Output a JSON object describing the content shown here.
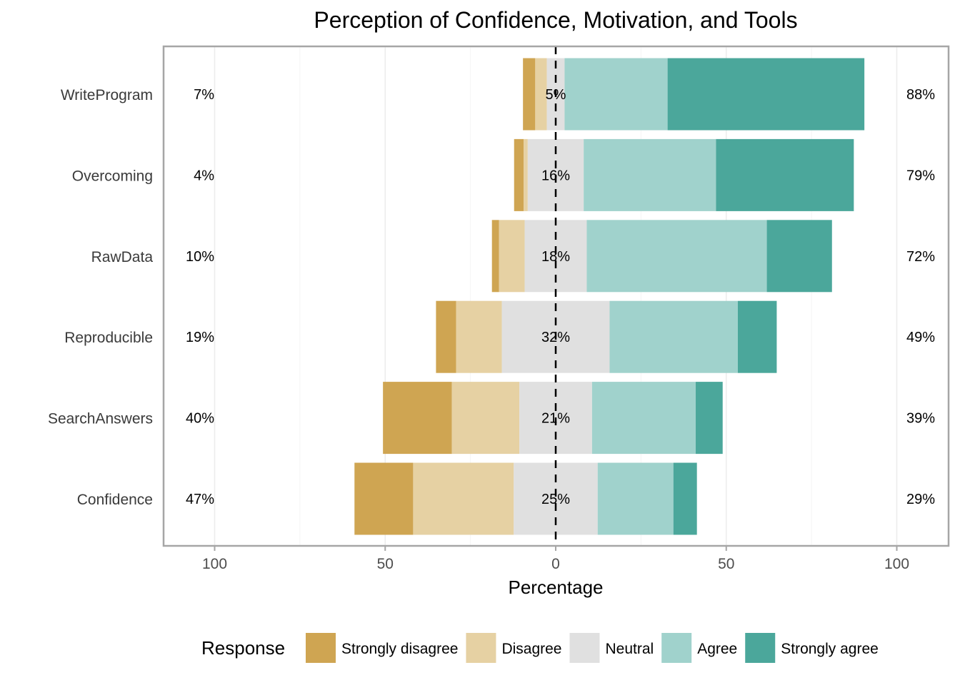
{
  "chart_data": {
    "type": "bar",
    "orientation": "horizontal",
    "stacked": "diverging",
    "title": "Perception of Confidence, Motivation, and Tools",
    "xlabel": "Percentage",
    "ylabel": "",
    "xlim": [
      -100,
      100
    ],
    "xticks": [
      -100,
      -50,
      0,
      50,
      100
    ],
    "xtick_labels": [
      "100",
      "50",
      "0",
      "50",
      "100"
    ],
    "grid": true,
    "legend": {
      "title": "Response",
      "position": "bottom",
      "entries": [
        "Strongly disagree",
        "Disagree",
        "Neutral",
        "Agree",
        "Strongly agree"
      ]
    },
    "categories": [
      "WriteProgram",
      "Overcoming",
      "RawData",
      "Reproducible",
      "SearchAnswers",
      "Confidence"
    ],
    "series": [
      {
        "name": "Strongly disagree",
        "color": "#CFA552",
        "values": [
          3.6,
          2.8,
          2.1,
          5.9,
          20.2,
          17.2
        ]
      },
      {
        "name": "Disagree",
        "color": "#E6D1A3",
        "values": [
          3.4,
          1.2,
          7.5,
          13.4,
          19.8,
          29.5
        ]
      },
      {
        "name": "Neutral",
        "color": "#E0E0E0",
        "values": [
          5.2,
          16.4,
          18.2,
          31.6,
          21.3,
          24.6
        ]
      },
      {
        "name": "Agree",
        "color": "#A0D2CC",
        "values": [
          30.2,
          38.8,
          52.8,
          37.6,
          30.4,
          22.2
        ]
      },
      {
        "name": "Strongly agree",
        "color": "#4BA79B",
        "values": [
          57.7,
          40.4,
          19.1,
          11.4,
          7.9,
          6.9
        ]
      }
    ],
    "summary_labels": {
      "left": [
        "7%",
        "4%",
        "10%",
        "19%",
        "40%",
        "47%"
      ],
      "center": [
        "5%",
        "16%",
        "18%",
        "32%",
        "21%",
        "25%"
      ],
      "right": [
        "88%",
        "79%",
        "72%",
        "49%",
        "39%",
        "29%"
      ]
    }
  }
}
